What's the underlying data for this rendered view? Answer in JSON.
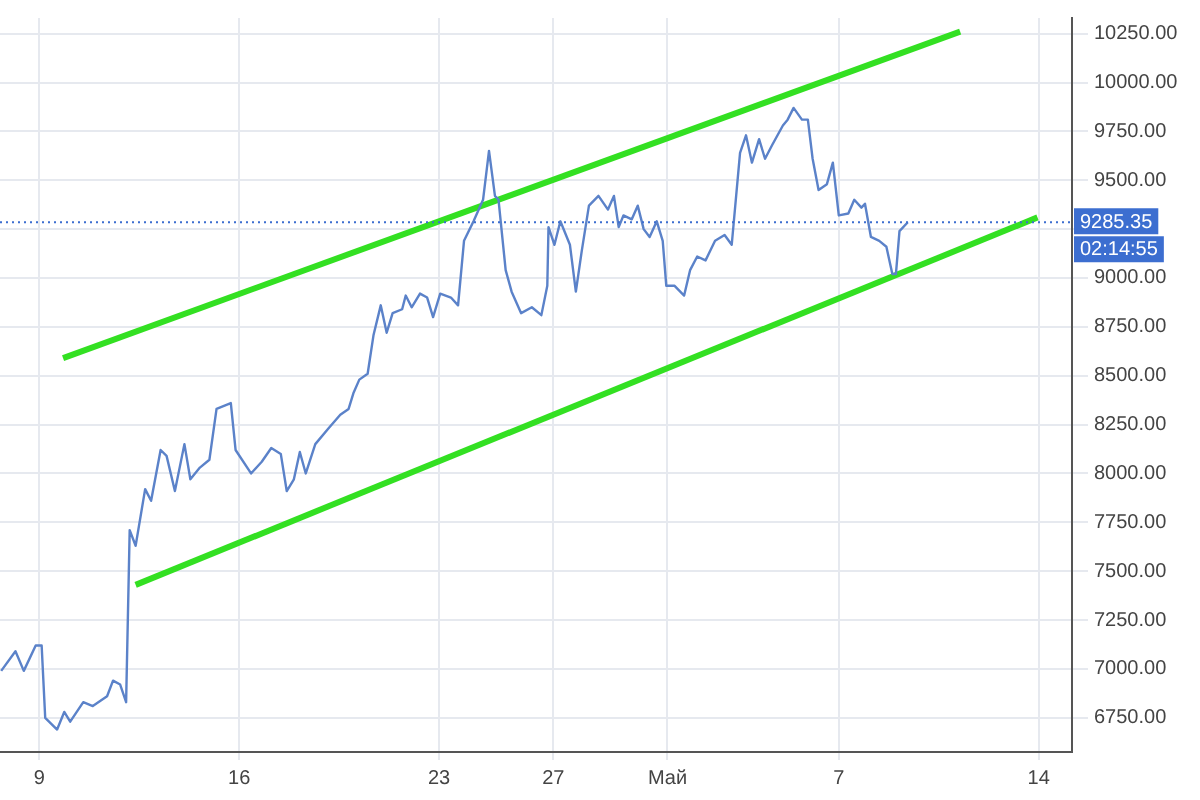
{
  "chart_data": {
    "type": "line",
    "grid": true,
    "legend": false,
    "marker": "none",
    "line_style": "solid",
    "xlim": [
      "--04-07T15:00",
      "--05-15T04:00"
    ],
    "xticks": [
      {
        "value": "--04-09",
        "label": "9"
      },
      {
        "value": "--04-16",
        "label": "16"
      },
      {
        "value": "--04-23",
        "label": "23"
      },
      {
        "value": "--04-27",
        "label": "27"
      },
      {
        "value": "--05-01",
        "label": "Май"
      },
      {
        "value": "--05-07",
        "label": "7"
      },
      {
        "value": "--05-14",
        "label": "14"
      }
    ],
    "ylim": [
      6575,
      10330
    ],
    "yticks": [
      {
        "value": 6750,
        "label": "6750.00"
      },
      {
        "value": 7000,
        "label": "7000.00"
      },
      {
        "value": 7250,
        "label": "7250.00"
      },
      {
        "value": 7500,
        "label": "7500.00"
      },
      {
        "value": 7750,
        "label": "7750.00"
      },
      {
        "value": 8000,
        "label": "8000.00"
      },
      {
        "value": 8250,
        "label": "8250.00"
      },
      {
        "value": 8500,
        "label": "8500.00"
      },
      {
        "value": 8750,
        "label": "8750.00"
      },
      {
        "value": 9000,
        "label": "9000.00"
      },
      {
        "value": 9250,
        "label": null
      },
      {
        "value": 9500,
        "label": "9500.00"
      },
      {
        "value": 9750,
        "label": "9750.00"
      },
      {
        "value": 10000,
        "label": "10000.00"
      },
      {
        "value": 10250,
        "label": "10250.00"
      }
    ],
    "ref_lines": [
      {
        "axis": "y",
        "value": 9285.35,
        "label": "9285.35",
        "color": "#3c6ed0",
        "line_style": "dotted"
      }
    ],
    "annotations": [
      "02:14:55"
    ],
    "series": [
      {
        "color": "#5b82c9",
        "x": [
          "--04-07T16:00",
          "--04-08T04:00",
          "--04-08T11:00",
          "--04-08T21:00",
          "--04-09T02:00",
          "--04-09T05:00",
          "--04-09T15:00",
          "--04-09T21:00",
          "--04-10T02:00",
          "--04-10T13:00",
          "--04-10T21:00",
          "--04-11T09:00",
          "--04-11T14:00",
          "--04-11T20:00",
          "--04-12T01:00",
          "--04-12T04:00",
          "--04-12T09:00",
          "--04-12T17:00",
          "--04-12T22:00",
          "--04-13T06:00",
          "--04-13T11:00",
          "--04-13T18:00",
          "--04-14T02:00",
          "--04-14T07:00",
          "--04-14T15:00",
          "--04-14T23:00",
          "--04-15T05:00",
          "--04-15T17:00",
          "--04-15T21:00",
          "--04-16T10:00",
          "--04-16T19:00",
          "--04-17T03:00",
          "--04-17T11:00",
          "--04-17T16:00",
          "--04-17T22:00",
          "--04-18T03:00",
          "--04-18T08:00",
          "--04-18T16:00",
          "--04-19T03:00",
          "--04-19T13:00",
          "--04-19T20:00",
          "--04-20T00:00",
          "--04-20T05:00",
          "--04-20T12:00",
          "--04-20T17:00",
          "--04-20T23:00",
          "--04-21T04:00",
          "--04-21T09:00",
          "--04-21T17:00",
          "--04-21T20:00",
          "--04-22T01:00",
          "--04-22T08:00",
          "--04-22T14:00",
          "--04-22T19:00",
          "--04-23T01:00",
          "--04-23T10:00",
          "--04-23T16:00",
          "--04-23T21:00",
          "--04-24T05:00",
          "--04-24T13:00",
          "--04-24T18:00",
          "--04-24T23:00",
          "--04-25T02:00",
          "--04-25T08:00",
          "--04-25T13:00",
          "--04-25T21:00",
          "--04-26T06:00",
          "--04-26T14:00",
          "--04-26T19:00",
          "--04-26T20:00",
          "--04-27T01:00",
          "--04-27T06:00",
          "--04-27T14:00",
          "--04-27T19:00",
          "--04-28T00:00",
          "--04-28T06:00",
          "--04-28T14:00",
          "--04-28T22:00",
          "--04-29T03:00",
          "--04-29T07:00",
          "--04-29T11:00",
          "--04-29T18:00",
          "--04-29T23:00",
          "--04-30T04:00",
          "--04-30T09:00",
          "--04-30T15:00",
          "--04-30T20:00",
          "--04-30T23:00",
          "--05-01T06:00",
          "--05-01T14:00",
          "--05-01T19:00",
          "--05-02T01:00",
          "--05-02T08:00",
          "--05-02T16:00",
          "--05-03T00:00",
          "--05-03T06:00",
          "--05-03T13:00",
          "--05-03T18:00",
          "--05-03T23:00",
          "--05-04T05:00",
          "--05-04T10:00",
          "--05-04T16:00",
          "--05-05T01:00",
          "--05-05T05:00",
          "--05-05T10:00",
          "--05-05T17:00",
          "--05-05T22:00",
          "--05-06T02:00",
          "--05-06T07:00",
          "--05-06T14:00",
          "--05-06T19:00",
          "--05-07T00:00",
          "--05-07T08:00",
          "--05-07T13:00",
          "--05-07T19:00",
          "--05-07T22:00",
          "--05-08T03:00",
          "--05-08T10:00",
          "--05-08T16:00",
          "--05-08T21:00",
          "--05-09T00:00",
          "--05-09T03:00",
          "--05-09T10:00"
        ],
        "values": [
          6990,
          7090,
          6990,
          7120,
          7120,
          6750,
          6690,
          6780,
          6730,
          6830,
          6810,
          6860,
          6940,
          6920,
          6830,
          7710,
          7630,
          7920,
          7860,
          8120,
          8090,
          7910,
          8150,
          7970,
          8030,
          8070,
          8330,
          8360,
          8120,
          8000,
          8060,
          8130,
          8100,
          7910,
          7970,
          8110,
          8000,
          8150,
          8230,
          8300,
          8330,
          8410,
          8480,
          8510,
          8710,
          8860,
          8720,
          8820,
          8840,
          8910,
          8850,
          8920,
          8900,
          8800,
          8920,
          8900,
          8860,
          9190,
          9290,
          9400,
          9650,
          9420,
          9400,
          9040,
          8930,
          8820,
          8850,
          8810,
          8960,
          9260,
          9170,
          9290,
          9170,
          8930,
          9140,
          9370,
          9420,
          9350,
          9420,
          9260,
          9320,
          9300,
          9370,
          9250,
          9210,
          9290,
          9190,
          8960,
          8960,
          8910,
          9040,
          9110,
          9090,
          9190,
          9220,
          9170,
          9640,
          9730,
          9590,
          9710,
          9610,
          9680,
          9780,
          9810,
          9870,
          9810,
          9810,
          9610,
          9450,
          9480,
          9590,
          9320,
          9330,
          9400,
          9360,
          9380,
          9210,
          9190,
          9160,
          9020,
          9020,
          9240,
          9285
        ]
      },
      {
        "type": "line",
        "color": "#33e022",
        "x": [
          "--04-09T20:00",
          "--05-11T06:00"
        ],
        "values": [
          8590,
          10260
        ]
      },
      {
        "type": "line",
        "color": "#33e022",
        "x": [
          "--04-12T09:00",
          "--05-13T23:00"
        ],
        "values": [
          7430,
          9310
        ]
      }
    ]
  }
}
